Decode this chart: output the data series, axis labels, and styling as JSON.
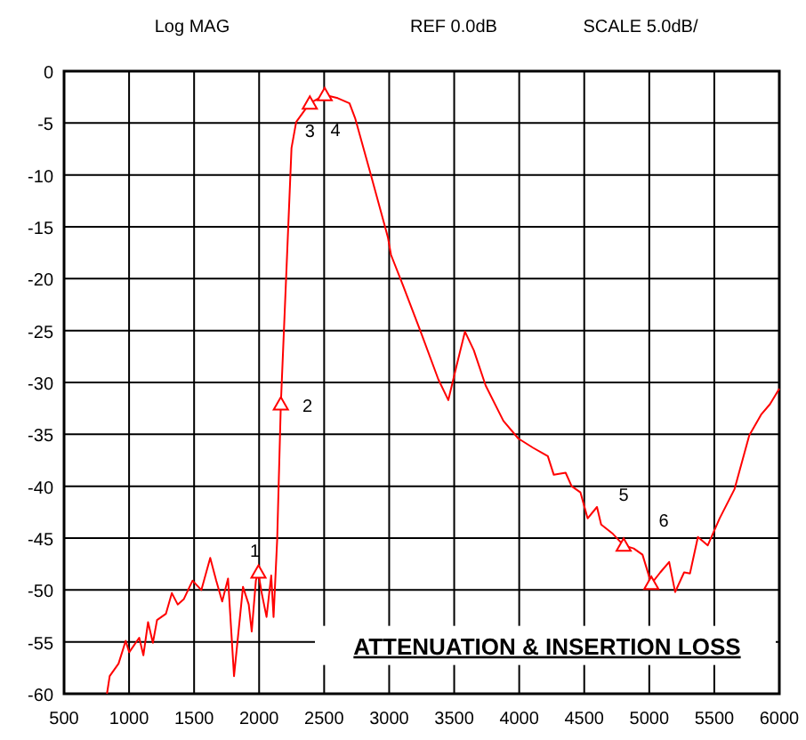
{
  "chart_data": {
    "type": "line",
    "title": "ATTENUATION & INSERTION LOSS",
    "annotations": [
      "Log MAG",
      "REF 0.0dB",
      "SCALE 5.0dB/",
      {
        "text": "1",
        "x": 1995,
        "y": -48.3
      },
      {
        "text": "2",
        "x": 2167,
        "y": -32.1
      },
      {
        "text": "3",
        "x": 2390,
        "y": -3.1
      },
      {
        "text": "4",
        "x": 2504,
        "y": -2.3
      },
      {
        "text": "5",
        "x": 4803,
        "y": -45.7
      },
      {
        "text": "6",
        "x": 5016,
        "y": -49.4
      }
    ],
    "series": [
      {
        "color": "#ff0000",
        "marker": "none",
        "x": [
          830,
          851,
          919,
          974,
          1001,
          1078,
          1110,
          1146,
          1183,
          1215,
          1283,
          1329,
          1374,
          1420,
          1465,
          1488,
          1556,
          1624,
          1670,
          1716,
          1761,
          1807,
          1876,
          1920,
          1943,
          1975,
          1993,
          2020,
          2057,
          2093,
          2111,
          2139,
          2167,
          2217,
          2249,
          2285,
          2389,
          2504,
          2604,
          2695,
          2740,
          2853,
          2990,
          3014,
          3105,
          3242,
          3378,
          3455,
          3514,
          3583,
          3651,
          3742,
          3878,
          3993,
          4107,
          4220,
          4266,
          4357,
          4403,
          4471,
          4526,
          4598,
          4630,
          4721,
          4803,
          4880,
          4948,
          5016,
          5085,
          5153,
          5199,
          5268,
          5313,
          5374,
          5450,
          5541,
          5655,
          5769,
          5860,
          5928,
          6000
        ],
        "values": [
          -60,
          -58.3,
          -57.1,
          -54.9,
          -56,
          -54.6,
          -56.3,
          -53.1,
          -55.1,
          -52.9,
          -52.3,
          -50.3,
          -51.4,
          -50.9,
          -49.7,
          -49.1,
          -50,
          -46.9,
          -49.1,
          -51.1,
          -48.9,
          -58.3,
          -49.7,
          -51.4,
          -54,
          -49.1,
          -48.3,
          -50.3,
          -52.6,
          -48.6,
          -52.6,
          -45.1,
          -32.1,
          -17.1,
          -7.4,
          -4.9,
          -3.1,
          -2.3,
          -2.6,
          -3.1,
          -4.6,
          -9.7,
          -16,
          -17.7,
          -20.6,
          -25.1,
          -29.7,
          -31.7,
          -28.6,
          -25.1,
          -26.9,
          -30.3,
          -33.7,
          -35.4,
          -36.3,
          -37.1,
          -38.9,
          -38.7,
          -40,
          -40.6,
          -43.1,
          -42,
          -43.7,
          -44.6,
          -45.7,
          -46,
          -46.6,
          -49.4,
          -48.3,
          -47.3,
          -50.2,
          -48.3,
          -48.4,
          -44.9,
          -45.7,
          -43.1,
          -40.3,
          -35.1,
          -33.1,
          -32.1,
          -30.6
        ]
      },
      {
        "type": "scatter",
        "color": "#ff0000",
        "marker": "triangle",
        "x": [
          1995,
          2167,
          2390,
          2504,
          4803,
          5016
        ],
        "values": [
          -48.3,
          -32.1,
          -3.1,
          -2.3,
          -45.7,
          -49.4
        ]
      }
    ],
    "xlim": [
      500,
      6000
    ],
    "xticks": [
      500,
      1000,
      1500,
      2000,
      2500,
      3000,
      3500,
      4000,
      4500,
      5000,
      5500,
      6000
    ],
    "ylim": [
      -60,
      0
    ],
    "yticks": [
      0,
      -5,
      -10,
      -15,
      -20,
      -25,
      -30,
      -35,
      -40,
      -45,
      -50,
      -55,
      -60
    ],
    "grid": true
  }
}
